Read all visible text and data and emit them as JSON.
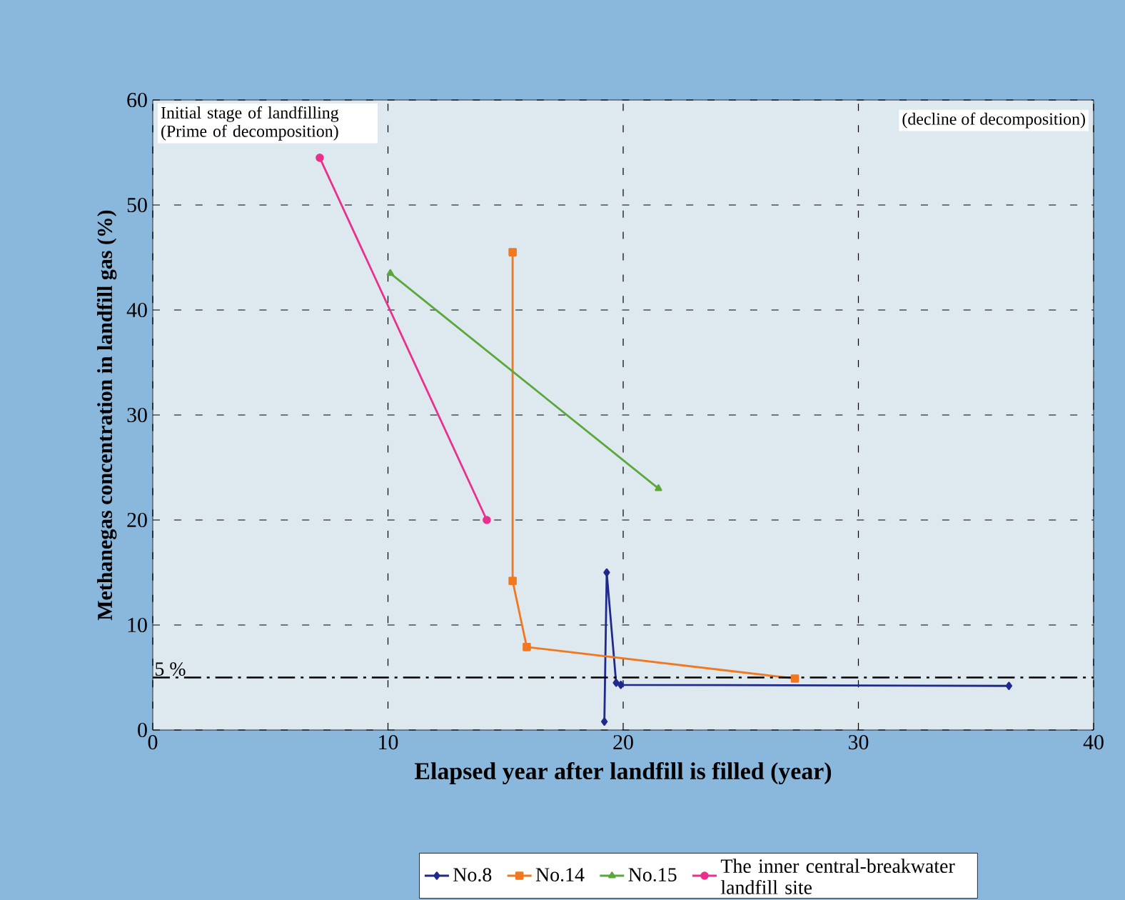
{
  "chart_data": {
    "type": "line",
    "xlabel": "Elapsed year after landfill is filled (year)",
    "ylabel": "Methanegas concentration in landfill gas (%)",
    "xlim": [
      0,
      40
    ],
    "xticks": [
      0,
      10,
      20,
      30,
      40
    ],
    "ylim": [
      0,
      60
    ],
    "yticks": [
      0,
      10,
      20,
      30,
      40,
      50,
      60
    ],
    "grid": true,
    "legend": "bottom",
    "line_style": "solid",
    "series": [
      {
        "name": "No.8",
        "color": "#1f2a8c",
        "marker": "diamond",
        "x": [
          19.2,
          19.3,
          19.7,
          19.9,
          36.4
        ],
        "values": [
          0.8,
          15,
          4.5,
          4.3,
          4.2
        ]
      },
      {
        "name": "No.14",
        "color": "#f07820",
        "marker": "square",
        "x": [
          15.3,
          15.3,
          15.9,
          27.3
        ],
        "values": [
          45.5,
          14.2,
          7.9,
          4.9
        ]
      },
      {
        "name": "No.15",
        "color": "#5aa83c",
        "marker": "triangle",
        "x": [
          10.1,
          21.5
        ],
        "values": [
          43.5,
          23
        ]
      },
      {
        "name": "The inner central-breakwater landfill site",
        "color": "#e8308c",
        "marker": "circle",
        "x": [
          7.1,
          14.2
        ],
        "values": [
          54.5,
          20
        ]
      }
    ],
    "ref_lines": [
      {
        "axis": "y",
        "value": 5,
        "label": "5 %",
        "color": "#000000",
        "line_style": "dashdotted"
      }
    ],
    "annotations": [
      "Initial stage of landfilling (Prime of decomposition)",
      "(decline of decomposition)"
    ]
  }
}
